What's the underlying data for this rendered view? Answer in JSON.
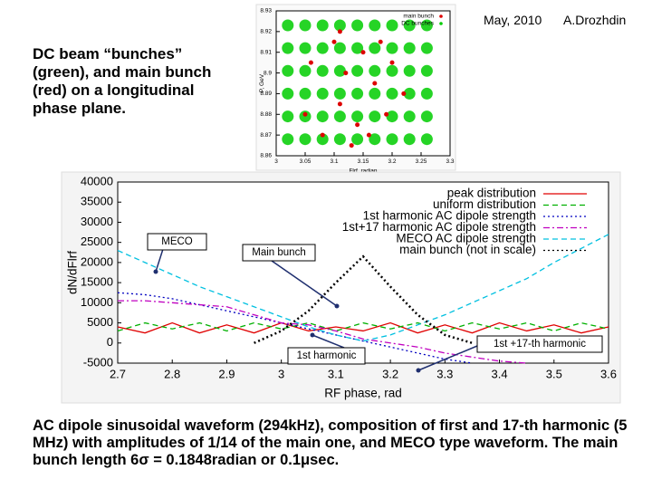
{
  "header": {
    "date": "May, 2010",
    "author": "A.Drozhdin"
  },
  "intro": "DC beam “bunches” (green), and main bunch (red) on a longitudinal phase plane.",
  "caption": "AC dipole sinusoidal waveform (294kHz), composition of first and 17-th harmonic (5 MHz) with amplitudes of 1/14 of the main one, and MECO type waveform. The main bunch length  6σ = 0.1848radian or 0.1μsec.",
  "chart_data": [
    {
      "type": "scatter",
      "xlabel": "Flrf, radian",
      "ylabel": "P, GeV",
      "xlim": [
        3,
        3.3
      ],
      "xticks": [
        3,
        3.05,
        3.1,
        3.15,
        3.2,
        3.25,
        3.3
      ],
      "ylim": [
        8.86,
        8.93
      ],
      "yticks": [
        8.86,
        8.87,
        8.88,
        8.89,
        8.9,
        8.91,
        8.92,
        8.93
      ],
      "legend": "upper right",
      "series": [
        {
          "name": "main bunch",
          "color": "#dd0000",
          "x": [
            3.05,
            3.06,
            3.08,
            3.1,
            3.11,
            3.12,
            3.14,
            3.15,
            3.17,
            3.19,
            3.2,
            3.22,
            3.11,
            3.13,
            3.16,
            3.18
          ],
          "values": [
            8.88,
            8.905,
            8.87,
            8.915,
            8.885,
            8.9,
            8.875,
            8.91,
            8.895,
            8.88,
            8.905,
            8.89,
            8.92,
            8.865,
            8.87,
            8.915
          ]
        },
        {
          "name": "DC bunches",
          "color": "#00cc00",
          "x": [
            3.02,
            3.02,
            3.02,
            3.02,
            3.02,
            3.02,
            3.05,
            3.05,
            3.05,
            3.05,
            3.05,
            3.05,
            3.08,
            3.08,
            3.08,
            3.08,
            3.08,
            3.08,
            3.11,
            3.11,
            3.11,
            3.11,
            3.11,
            3.11,
            3.14,
            3.14,
            3.14,
            3.14,
            3.14,
            3.14,
            3.17,
            3.17,
            3.17,
            3.17,
            3.17,
            3.17,
            3.2,
            3.2,
            3.2,
            3.2,
            3.2,
            3.2,
            3.23,
            3.23,
            3.23,
            3.23,
            3.23,
            3.23,
            3.26,
            3.26,
            3.26,
            3.26,
            3.26,
            3.26
          ],
          "values": [
            8.868,
            8.879,
            8.89,
            8.901,
            8.912,
            8.923,
            8.868,
            8.879,
            8.89,
            8.901,
            8.912,
            8.923,
            8.868,
            8.879,
            8.89,
            8.901,
            8.912,
            8.923,
            8.868,
            8.879,
            8.89,
            8.901,
            8.912,
            8.923,
            8.868,
            8.879,
            8.89,
            8.901,
            8.912,
            8.923,
            8.868,
            8.879,
            8.89,
            8.901,
            8.912,
            8.923,
            8.868,
            8.879,
            8.89,
            8.901,
            8.912,
            8.923,
            8.868,
            8.879,
            8.89,
            8.901,
            8.912,
            8.923,
            8.868,
            8.879,
            8.89,
            8.901,
            8.912,
            8.923
          ]
        }
      ]
    },
    {
      "type": "line",
      "xlabel": "RF phase, rad",
      "ylabel": "dN/dFlrf",
      "xlim": [
        2.7,
        3.6
      ],
      "xticks": [
        2.7,
        2.8,
        2.9,
        3,
        3.1,
        3.2,
        3.3,
        3.4,
        3.5,
        3.6
      ],
      "ylim": [
        -5000,
        40000
      ],
      "yticks": [
        -5000,
        0,
        5000,
        10000,
        15000,
        20000,
        25000,
        30000,
        35000,
        40000
      ],
      "legend": "upper right",
      "x": [
        2.7,
        2.75,
        2.8,
        2.85,
        2.9,
        2.95,
        3,
        3.05,
        3.1,
        3.15,
        3.2,
        3.25,
        3.3,
        3.35,
        3.4,
        3.45,
        3.5,
        3.55,
        3.6
      ],
      "series": [
        {
          "name": "peak distribution",
          "color": "#e00000",
          "style": "solid",
          "values": [
            4000,
            2500,
            5000,
            2500,
            4500,
            2500,
            5000,
            3000,
            4000,
            3000,
            5000,
            2500,
            4500,
            2500,
            5000,
            3000,
            4500,
            2500,
            4000
          ]
        },
        {
          "name": "uniform distribution",
          "color": "#00b000",
          "style": "dashed",
          "values": [
            3000,
            5000,
            3500,
            5000,
            3000,
            5000,
            3500,
            5000,
            3000,
            5000,
            3500,
            5000,
            3000,
            5000,
            3500,
            5000,
            3000,
            5000,
            3500
          ]
        },
        {
          "name": "1st harmonic AC dipole strength",
          "color": "#0000c0",
          "style": "dotted",
          "values": [
            12500,
            12000,
            11000,
            9500,
            8000,
            6500,
            5000,
            3500,
            2000,
            500,
            -1000,
            -2500,
            -4000,
            -5000,
            null,
            null,
            null,
            null,
            null
          ]
        },
        {
          "name": "1st+17 harmonic AC dipole strength",
          "color": "#c000c0",
          "style": "dashdot",
          "values": [
            10500,
            10500,
            10000,
            9500,
            9000,
            7000,
            5000,
            4500,
            3000,
            1000,
            0,
            -1000,
            -2500,
            -3500,
            -4500,
            -5000,
            null,
            null,
            null
          ]
        },
        {
          "name": "MECO AC dipole strength",
          "color": "#00c0e0",
          "style": "dashed",
          "values": [
            23000,
            20000,
            17000,
            14000,
            11500,
            9000,
            6500,
            4000,
            2000,
            500,
            2000,
            4500,
            7000,
            10000,
            13000,
            16000,
            20000,
            23500,
            27000
          ]
        },
        {
          "name": "main bunch (not in scale)",
          "color": "#000000",
          "style": "dotted",
          "values": [
            null,
            null,
            null,
            null,
            null,
            0,
            3000,
            8000,
            15000,
            21500,
            14000,
            7000,
            2000,
            0,
            null,
            null,
            null,
            null,
            null
          ]
        }
      ],
      "annotations": [
        "MECO",
        "Main bunch",
        "1st harmonic",
        "1st +17-th harmonic"
      ]
    }
  ]
}
